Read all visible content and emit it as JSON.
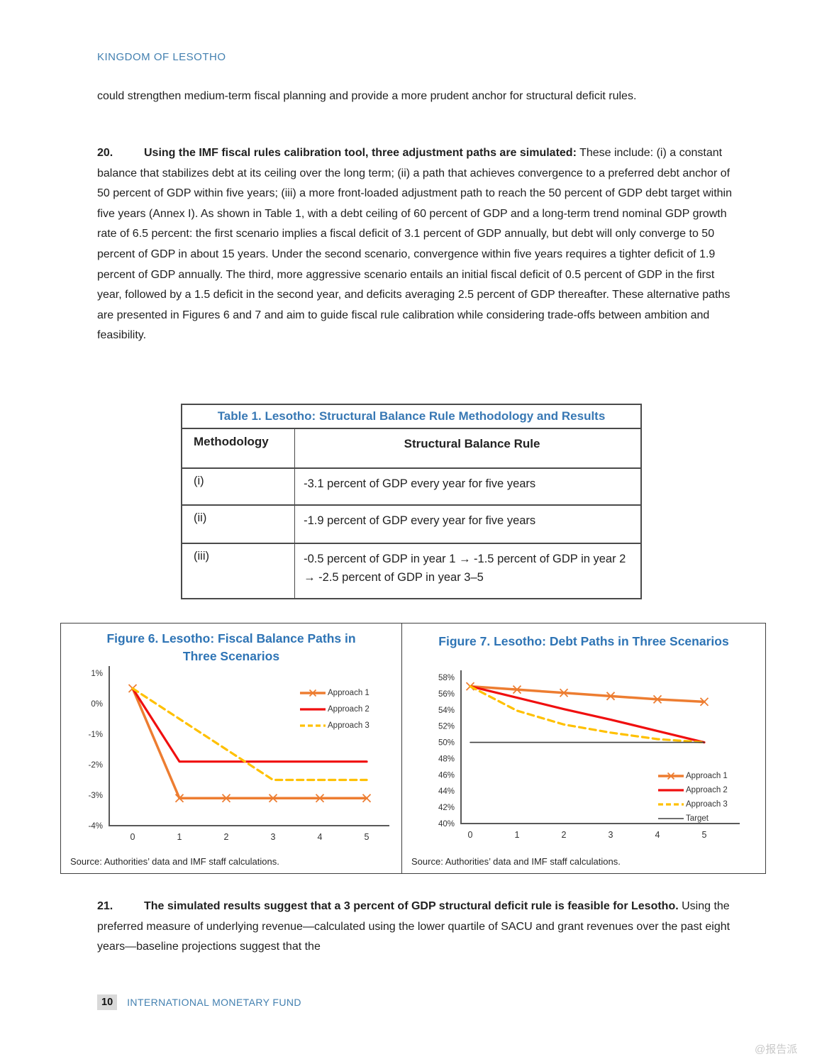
{
  "page": {
    "header": "KINGDOM OF LESOTHO",
    "footer_page_number": "10",
    "footer_text": "INTERNATIONAL MONETARY FUND",
    "watermark": "@报告派"
  },
  "paragraphs": {
    "intro": "could strengthen medium-term fiscal planning and provide a more prudent anchor for structural deficit rules.",
    "p20_number": "20.",
    "p20_bold": "Using the IMF fiscal rules calibration tool, three adjustment paths are simulated:",
    "p20_text": " These include: (i) a constant balance that stabilizes debt at its ceiling over the long term; (ii) a path that achieves convergence to a preferred debt anchor of 50 percent of GDP within five years; (iii) a more front-loaded adjustment path to reach the 50 percent of GDP debt target within five years (Annex I). As shown in Table 1, with a debt ceiling of 60 percent of GDP and a long-term trend nominal GDP growth rate of 6.5 percent: the first scenario implies a fiscal deficit of 3.1 percent of GDP annually, but debt will only converge to 50 percent of GDP in about 15 years. Under the second scenario, convergence within five years requires a tighter deficit of 1.9 percent of GDP annually. The third, more aggressive scenario entails an initial fiscal deficit of 0.5 percent of GDP in the first year, followed by a 1.5 deficit in the second year, and deficits averaging 2.5 percent of GDP thereafter. These alternative paths are presented in Figures 6 and 7 and aim to guide fiscal rule calibration while considering trade-offs between ambition and feasibility.",
    "p21_number": "21.",
    "p21_bold": "The simulated results suggest that a 3 percent of GDP structural deficit rule is feasible for Lesotho.",
    "p21_text": " Using the preferred measure of underlying revenue—calculated using the lower quartile of SACU and grant revenues over the past eight years—baseline projections suggest that the"
  },
  "table1": {
    "title": "Table 1. Lesotho: Structural Balance Rule Methodology and Results",
    "col_methodology": "Methodology",
    "col_rule": "Structural Balance Rule",
    "rows": [
      {
        "methodology": "(i)",
        "rule": "-3.1 percent of GDP every year for five years"
      },
      {
        "methodology": "(ii)",
        "rule": "-1.9 percent of GDP every year for five years"
      },
      {
        "methodology": "(iii)",
        "rule": "-0.5 percent of GDP in year 1 → -1.5 percent of GDP in year 2 → -2.5 percent of GDP in year 3–5"
      }
    ]
  },
  "colors": {
    "heading_blue": "#2e74b5",
    "approach1_orange": "#ED7D31",
    "approach2_red": "#F00F0F",
    "approach3_gold": "#FFC000",
    "target_gray": "#404040"
  },
  "chart_data": [
    {
      "type": "line",
      "title": "Figure 6. Lesotho: Fiscal Balance Paths in Three Scenarios",
      "source": "Source: Authorities’ data and IMF staff calculations.",
      "x": [
        0,
        1,
        2,
        3,
        4,
        5
      ],
      "xlabel": "",
      "ylabel": "",
      "ylim": [
        -4,
        1
      ],
      "grid": false,
      "legend_position": "inside-top-right",
      "yticks": [
        {
          "v": 1,
          "label": "1%"
        },
        {
          "v": 0,
          "label": "0%"
        },
        {
          "v": -1,
          "label": "-1%"
        },
        {
          "v": -2,
          "label": "-2%"
        },
        {
          "v": -3,
          "label": "-3%"
        },
        {
          "v": -4,
          "label": "-4%"
        }
      ],
      "series": [
        {
          "name": "Approach 1",
          "color": "#ED7D31",
          "style": "solid",
          "marker": true,
          "width": 3.5,
          "values": [
            0.5,
            -3.1,
            -3.1,
            -3.1,
            -3.1,
            -3.1
          ]
        },
        {
          "name": "Approach 2",
          "color": "#F00F0F",
          "style": "solid",
          "marker": false,
          "width": 3.2,
          "values": [
            0.5,
            -1.9,
            -1.9,
            -1.9,
            -1.9,
            -1.9
          ]
        },
        {
          "name": "Approach 3",
          "color": "#FFC000",
          "style": "dashed",
          "marker": false,
          "width": 3.2,
          "values": [
            0.5,
            -0.5,
            -1.5,
            -2.5,
            -2.5,
            -2.5
          ]
        }
      ]
    },
    {
      "type": "line",
      "title": "Figure 7. Lesotho: Debt Paths in Three Scenarios",
      "source": "Source: Authorities’ data and IMF staff calculations.",
      "x": [
        0,
        1,
        2,
        3,
        4,
        5
      ],
      "xlabel": "",
      "ylabel": "",
      "ylim": [
        40,
        58
      ],
      "grid": false,
      "legend_position": "inside-bottom-right",
      "yticks": [
        {
          "v": 58,
          "label": "58%"
        },
        {
          "v": 56,
          "label": "56%"
        },
        {
          "v": 54,
          "label": "54%"
        },
        {
          "v": 52,
          "label": "52%"
        },
        {
          "v": 50,
          "label": "50%"
        },
        {
          "v": 48,
          "label": "48%"
        },
        {
          "v": 46,
          "label": "46%"
        },
        {
          "v": 44,
          "label": "44%"
        },
        {
          "v": 42,
          "label": "42%"
        },
        {
          "v": 40,
          "label": "40%"
        }
      ],
      "series": [
        {
          "name": "Approach 1",
          "color": "#ED7D31",
          "style": "solid",
          "marker": true,
          "width": 3.5,
          "values": [
            56.9,
            56.5,
            56.1,
            55.7,
            55.3,
            55.0
          ]
        },
        {
          "name": "Approach 2",
          "color": "#F00F0F",
          "style": "solid",
          "marker": false,
          "width": 3.2,
          "values": [
            56.9,
            55.5,
            54.1,
            52.8,
            51.4,
            50.0
          ]
        },
        {
          "name": "Approach 3",
          "color": "#FFC000",
          "style": "dashed",
          "marker": false,
          "width": 3.2,
          "values": [
            56.9,
            53.9,
            52.2,
            51.2,
            50.4,
            50.0
          ]
        },
        {
          "name": "Target",
          "color": "#404040",
          "style": "solid",
          "marker": false,
          "width": 1.6,
          "values": [
            50,
            50,
            50,
            50,
            50,
            50
          ]
        }
      ]
    }
  ]
}
